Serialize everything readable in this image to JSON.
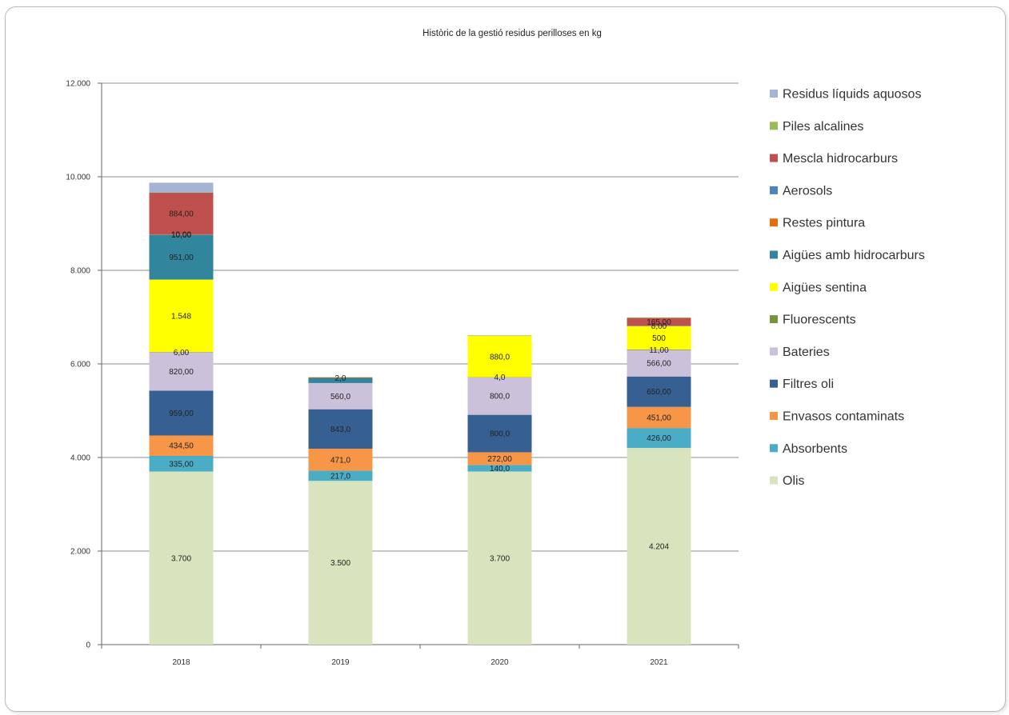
{
  "chart_data": {
    "type": "bar",
    "stacked": true,
    "title": "Històric de la gestió residus perilloses en kg",
    "xlabel": "",
    "ylabel": "",
    "ylim": [
      0,
      12000
    ],
    "yticks": [
      0,
      2000,
      4000,
      6000,
      8000,
      10000,
      12000
    ],
    "ytick_labels": [
      "0",
      "2.000",
      "4.000",
      "6.000",
      "8.000",
      "10.000",
      "12.000"
    ],
    "grid": true,
    "legend_position": "right",
    "categories": [
      "2018",
      "2019",
      "2020",
      "2021"
    ],
    "series": [
      {
        "name": "Olis",
        "color": "#d7e4bd",
        "values": [
          3700,
          3500,
          3700,
          4204
        ],
        "labels": [
          "3.700",
          "3.500",
          "3.700",
          "4.204"
        ]
      },
      {
        "name": "Absorbents",
        "color": "#4bacc6",
        "values": [
          335,
          217,
          140,
          426
        ],
        "labels": [
          "335,00",
          "217,0",
          "140,0",
          "426,00"
        ]
      },
      {
        "name": "Envasos contaminats",
        "color": "#f79646",
        "values": [
          434.5,
          471,
          272,
          451
        ],
        "labels": [
          "434,50",
          "471,0",
          "272,00",
          "451,00"
        ]
      },
      {
        "name": "Filtres oli",
        "color": "#376092",
        "values": [
          959,
          843,
          800,
          650
        ],
        "labels": [
          "959,00",
          "843,0",
          "800,0",
          "650,00"
        ]
      },
      {
        "name": "Bateries",
        "color": "#ccc1da",
        "values": [
          820,
          560,
          800,
          566
        ],
        "labels": [
          "820,00",
          "560,0",
          "800,0",
          "566,00"
        ]
      },
      {
        "name": "Fluorescents",
        "color": "#77933c",
        "values": [
          6,
          0,
          4,
          11
        ],
        "labels": [
          "6,00",
          "",
          "4,0",
          "11,00"
        ]
      },
      {
        "name": "Aigües sentina",
        "color": "#ffff00",
        "values": [
          1548,
          0,
          880,
          500
        ],
        "labels": [
          "1.548",
          "",
          "880,0",
          "500"
        ]
      },
      {
        "name": "Aigües amb hidrocarburs",
        "color": "#31859c",
        "values": [
          951,
          110,
          0,
          0
        ],
        "labels": [
          "951,00",
          "",
          "",
          ""
        ]
      },
      {
        "name": "Restes pintura",
        "color": "#e46c0a",
        "values": [
          10,
          2,
          0,
          0
        ],
        "labels": [
          "10,00",
          "2,0",
          "",
          ""
        ]
      },
      {
        "name": "Aerosols",
        "color": "#4f81bd",
        "values": [
          10,
          0,
          0,
          8
        ],
        "labels": [
          "10,00",
          "",
          "",
          "8,00"
        ]
      },
      {
        "name": "Mescla hidrocarburs",
        "color": "#c0504d",
        "values": [
          884,
          0,
          0,
          165
        ],
        "labels": [
          "884,00",
          "",
          "",
          "165,00"
        ]
      },
      {
        "name": "Piles alcalines",
        "color": "#9bbb59",
        "values": [
          5,
          0,
          10,
          3
        ],
        "labels": [
          "",
          "",
          "",
          ""
        ]
      },
      {
        "name": "Residus líquids aquosos",
        "color": "#a5b4d4",
        "values": [
          210,
          0,
          0,
          0
        ],
        "labels": [
          "",
          "",
          "",
          ""
        ]
      }
    ],
    "legend_order": [
      "Residus líquids aquosos",
      "Piles alcalines",
      "Mescla hidrocarburs",
      "Aerosols",
      "Restes pintura",
      "Aigües amb hidrocarburs",
      "Aigües sentina",
      "Fluorescents",
      "Bateries",
      "Filtres oli",
      "Envasos contaminats",
      "Absorbents",
      "Olis"
    ]
  }
}
